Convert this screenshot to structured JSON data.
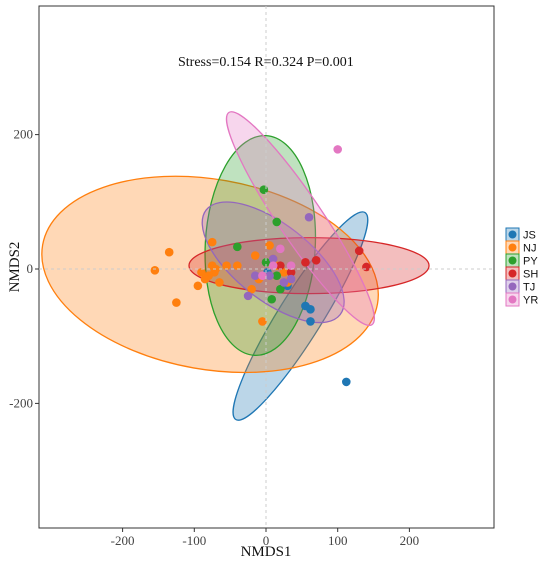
{
  "chart_data": {
    "type": "scatter",
    "xlabel": "NMDS1",
    "ylabel": "NMDS2",
    "xlim": [
      -280,
      320
    ],
    "ylim": [
      -390,
      195
    ],
    "xticks": [
      -200,
      -100,
      0,
      100,
      200
    ],
    "yticks": [
      200,
      0,
      -200
    ],
    "grid": "dashed zero lines",
    "legend_position": "right",
    "annotation": "Stress=0.154   R=0.324   P=0.001",
    "series": [
      {
        "name": "JS",
        "color": "#1f77b4",
        "points": [
          [
            2,
            -5
          ],
          [
            30,
            -25
          ],
          [
            55,
            -55
          ],
          [
            62,
            -60
          ],
          [
            62,
            -78
          ],
          [
            112,
            -168
          ]
        ],
        "ellipse": {
          "cx": 48,
          "cy": -70,
          "rx": 122,
          "ry": 22,
          "angle": -58
        }
      },
      {
        "name": "NJ",
        "color": "#ff7f0e",
        "points": [
          [
            -135,
            25
          ],
          [
            -90,
            -5
          ],
          [
            -75,
            5
          ],
          [
            -72,
            -5
          ],
          [
            -80,
            -10
          ],
          [
            -70,
            0
          ],
          [
            -55,
            5
          ],
          [
            -40,
            5
          ],
          [
            -20,
            -30
          ],
          [
            -10,
            -15
          ],
          [
            -5,
            -78
          ],
          [
            -85,
            -15
          ],
          [
            -95,
            -25
          ],
          [
            -125,
            -50
          ],
          [
            -65,
            -20
          ],
          [
            -155,
            -2
          ],
          [
            -75,
            40
          ],
          [
            15,
            5
          ],
          [
            25,
            -5
          ],
          [
            10,
            15
          ],
          [
            -15,
            20
          ],
          [
            5,
            35
          ],
          [
            30,
            -20
          ]
        ],
        "ellipse": {
          "cx": -78,
          "cy": -8,
          "rx": 170,
          "ry": 95,
          "angle": 10
        }
      },
      {
        "name": "PY",
        "color": "#2ca02c",
        "points": [
          [
            -3,
            118
          ],
          [
            -40,
            33
          ],
          [
            15,
            70
          ],
          [
            20,
            -30
          ],
          [
            8,
            -45
          ],
          [
            0,
            10
          ],
          [
            15,
            -10
          ]
        ],
        "ellipse": {
          "cx": -8,
          "cy": 35,
          "rx": 110,
          "ry": 55,
          "angle": 93
        }
      },
      {
        "name": "SH",
        "color": "#d62728",
        "points": [
          [
            130,
            27
          ],
          [
            140,
            3
          ],
          [
            70,
            13
          ],
          [
            55,
            10
          ],
          [
            20,
            5
          ],
          [
            35,
            -5
          ]
        ],
        "ellipse": {
          "cx": 60,
          "cy": 5,
          "rx": 120,
          "ry": 28,
          "angle": 0
        }
      },
      {
        "name": "TJ",
        "color": "#9467bd",
        "points": [
          [
            60,
            77
          ],
          [
            -25,
            -40
          ],
          [
            -15,
            -10
          ],
          [
            10,
            15
          ],
          [
            25,
            -20
          ],
          [
            5,
            -10
          ],
          [
            35,
            -15
          ]
        ],
        "ellipse": {
          "cx": 10,
          "cy": 10,
          "rx": 85,
          "ry": 38,
          "angle": 38
        }
      },
      {
        "name": "YR",
        "color": "#e377c2",
        "points": [
          [
            100,
            178
          ],
          [
            20,
            30
          ],
          [
            35,
            5
          ],
          [
            -5,
            -10
          ],
          [
            10,
            5
          ]
        ],
        "ellipse": {
          "cx": 48,
          "cy": 75,
          "rx": 128,
          "ry": 22,
          "angle": 56
        }
      }
    ]
  }
}
